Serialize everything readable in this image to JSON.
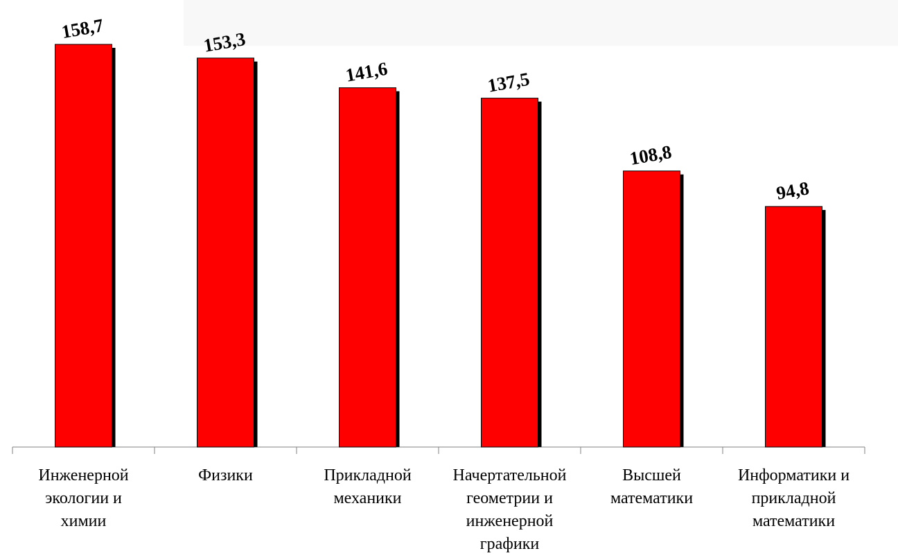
{
  "chart_data": {
    "type": "bar",
    "categories": [
      "Инженерной\nэкологии и\nхимии",
      "Физики",
      "Прикладной\nмеханики",
      "Начертательной\nгеометрии и\nинженерной\nграфики",
      "Высшей\nматематики",
      "Информатики и\nприкладной\nматематики"
    ],
    "values": [
      158.7,
      153.3,
      141.6,
      137.5,
      108.8,
      94.8
    ],
    "value_labels": [
      "158,7",
      "153,3",
      "141,6",
      "137,5",
      "108,8",
      "94,8"
    ],
    "color": "#ff0000"
  }
}
